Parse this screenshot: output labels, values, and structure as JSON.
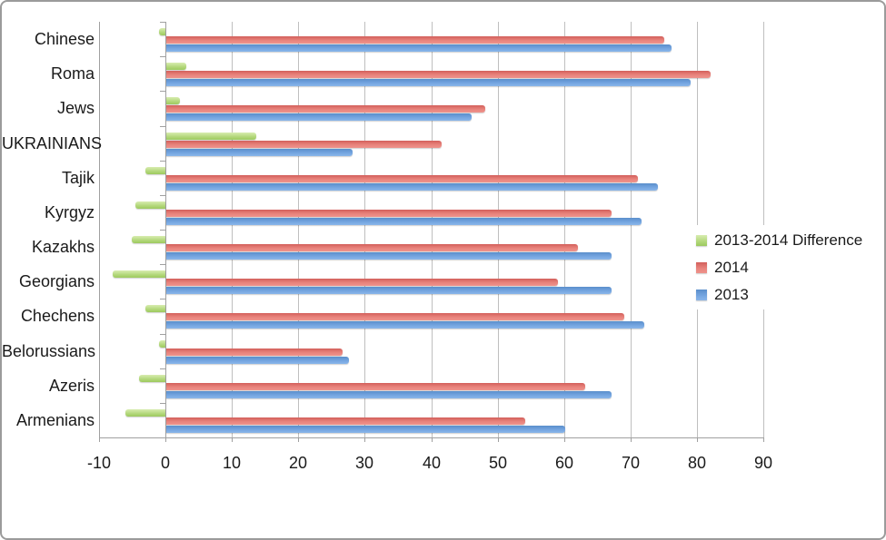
{
  "chart_data": {
    "type": "bar",
    "orientation": "horizontal",
    "title": "",
    "categories": [
      "Chinese",
      "Roma",
      "Jews",
      "UKRAINIANS",
      "Tajik",
      "Kyrgyz",
      "Kazakhs",
      "Georgians",
      "Chechens",
      "Belorussians",
      "Azeris",
      "Armenians"
    ],
    "series": [
      {
        "name": "2013-2014 Difference",
        "color_key": "green",
        "values": [
          -1,
          3,
          2,
          13.5,
          -3,
          -4.5,
          -5,
          -8,
          -3,
          -1,
          -4,
          -6
        ]
      },
      {
        "name": "2014",
        "color_key": "red",
        "values": [
          75,
          82,
          48,
          41.5,
          71,
          67,
          62,
          59,
          69,
          26.5,
          63,
          54
        ]
      },
      {
        "name": "2013",
        "color_key": "blue",
        "values": [
          76,
          79,
          46,
          28,
          74,
          71.5,
          67,
          67,
          72,
          27.5,
          67,
          60
        ]
      }
    ],
    "xaxis": {
      "min": -10,
      "max": 90,
      "step": 10,
      "tick_labels": [
        "-10",
        "0",
        "10",
        "20",
        "30",
        "40",
        "50",
        "60",
        "70",
        "80",
        "90"
      ]
    },
    "legend": {
      "position": "right",
      "entries": [
        "2013-2014 Difference",
        "2014",
        "2013"
      ]
    },
    "grid": true,
    "colors": {
      "green": {
        "top": "#d8ecb0",
        "mid": "#b5d97e",
        "bottom": "#9cc95e"
      },
      "red": {
        "top": "#d25f5b",
        "mid": "#e8837c",
        "bottom": "#ee938c"
      },
      "blue": {
        "top": "#5a8ecb",
        "mid": "#74a5e0",
        "bottom": "#8ab6ea"
      },
      "gridline": "#bfbfbf",
      "axis": "#a0a0a0",
      "text": "#1a1a1a"
    }
  }
}
